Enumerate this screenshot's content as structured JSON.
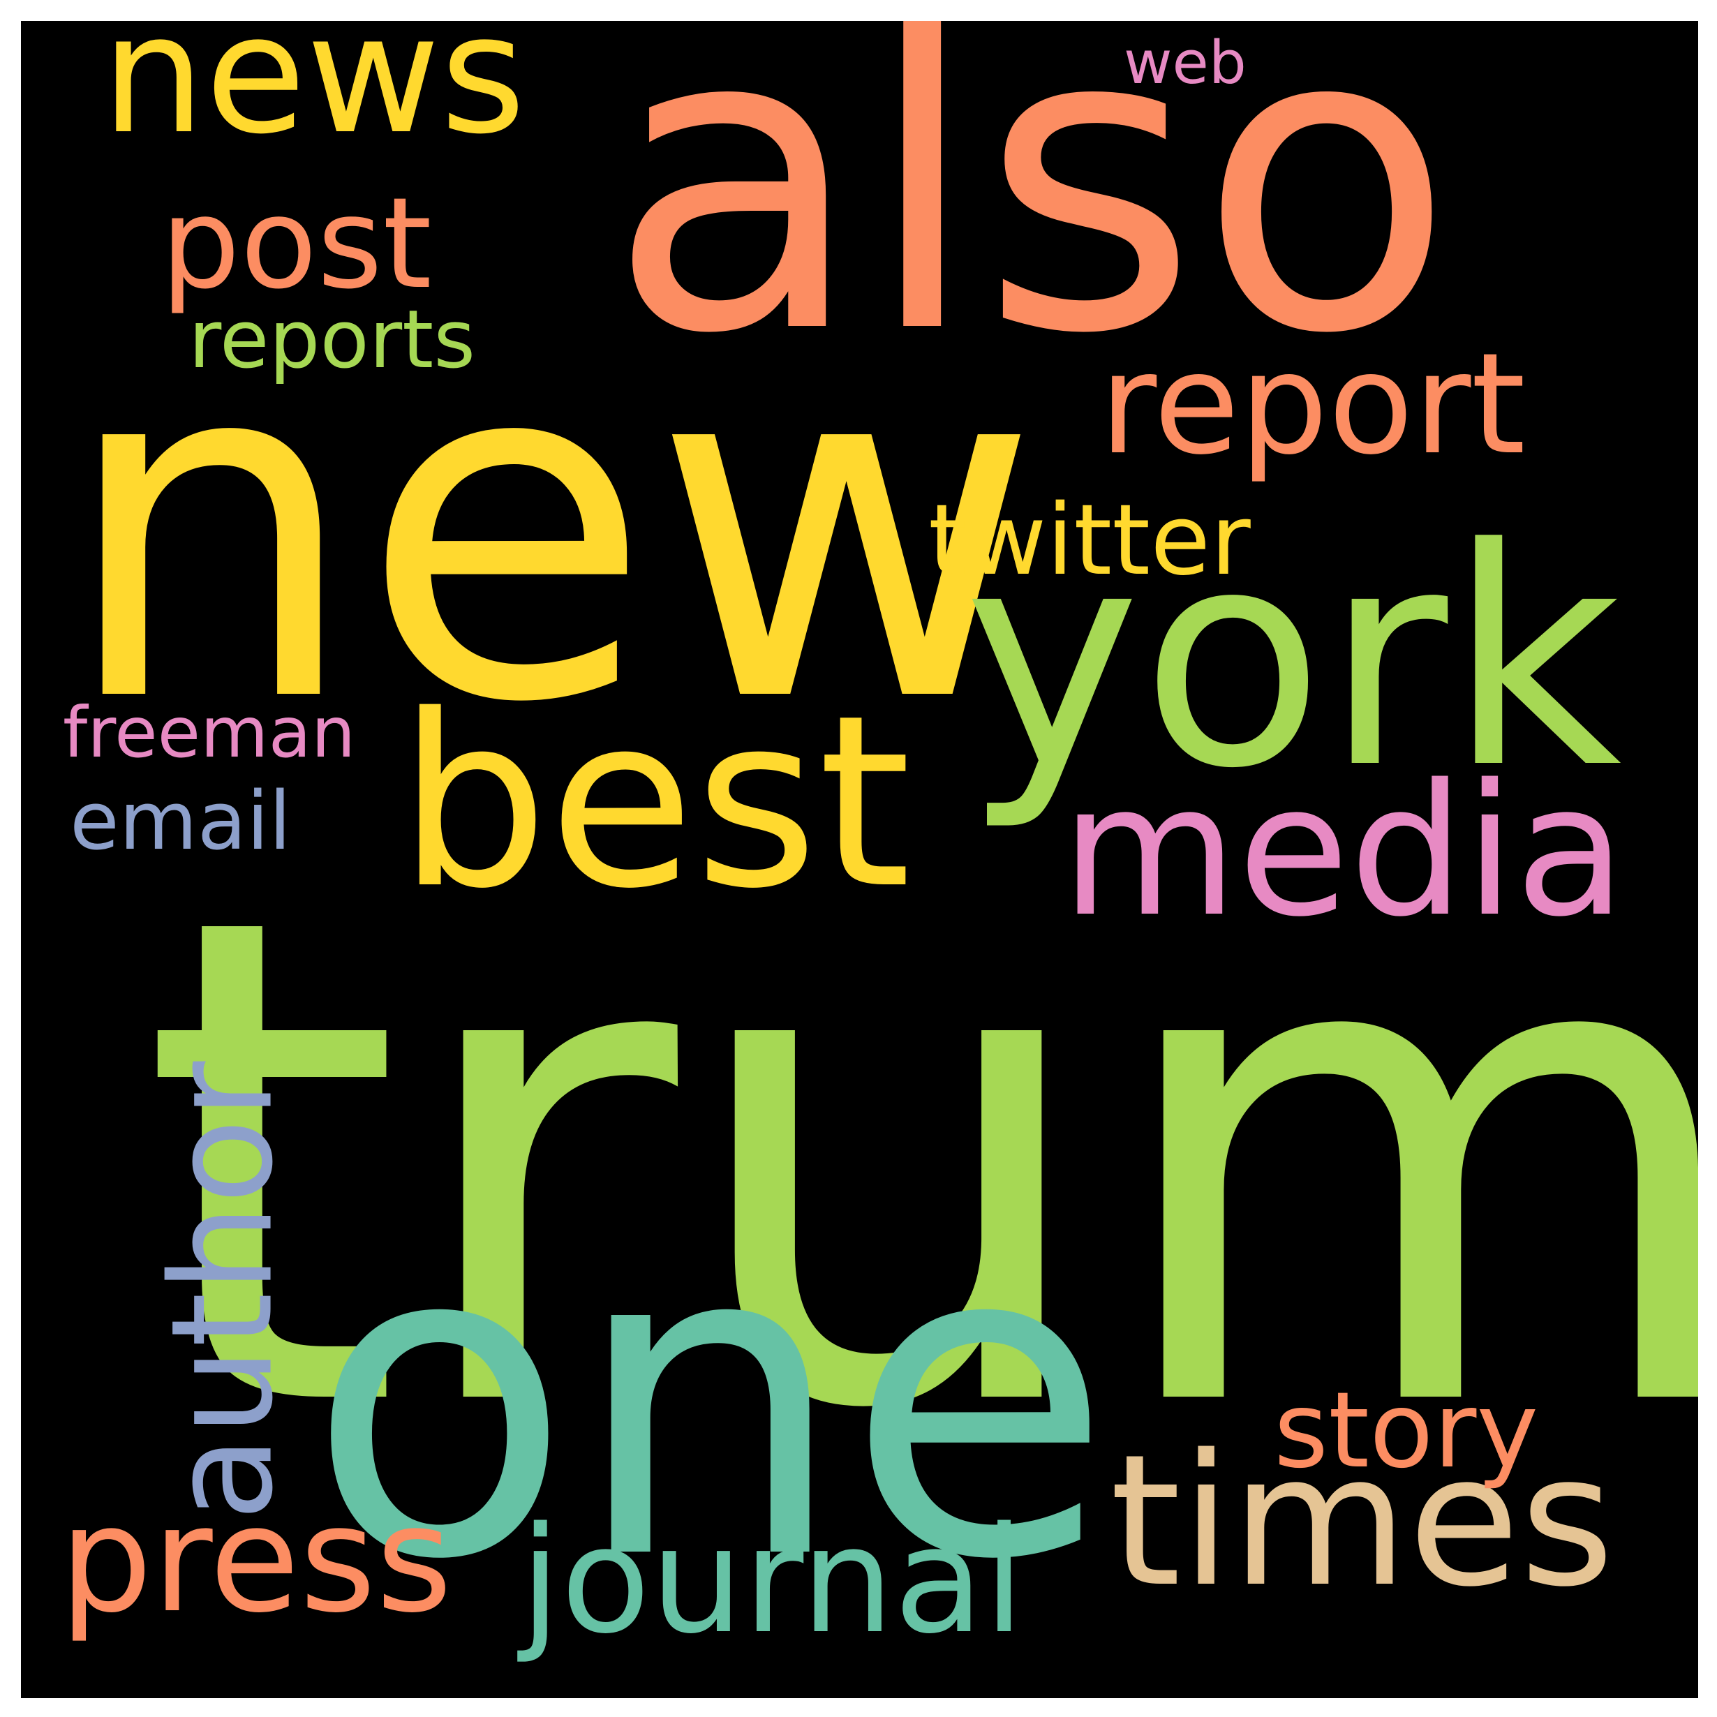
{
  "background": "#000000",
  "words": [
    {
      "id": "trump",
      "text": "trump",
      "color": "#a6d854"
    },
    {
      "id": "new",
      "text": "new",
      "color": "#ffd92f"
    },
    {
      "id": "also",
      "text": "also",
      "color": "#fc8d62"
    },
    {
      "id": "one",
      "text": "one",
      "color": "#66c2a5"
    },
    {
      "id": "york",
      "text": "york",
      "color": "#a6d854"
    },
    {
      "id": "best",
      "text": "best",
      "color": "#ffd92f"
    },
    {
      "id": "media",
      "text": "media",
      "color": "#e78ac3"
    },
    {
      "id": "times",
      "text": "times",
      "color": "#e5c494"
    },
    {
      "id": "news",
      "text": "news",
      "color": "#ffd92f"
    },
    {
      "id": "report",
      "text": "report",
      "color": "#fc8d62"
    },
    {
      "id": "press",
      "text": "press",
      "color": "#fc8d62"
    },
    {
      "id": "journal",
      "text": "journal",
      "color": "#66c2a5"
    },
    {
      "id": "post",
      "text": "post",
      "color": "#fc8d62"
    },
    {
      "id": "story",
      "text": "story",
      "color": "#8da0cb"
    },
    {
      "id": "author",
      "text": "author",
      "color": "#fc8d62"
    },
    {
      "id": "twitter",
      "text": "twitter",
      "color": "#ffd92f"
    },
    {
      "id": "reports",
      "text": "reports",
      "color": "#a6d854"
    },
    {
      "id": "email",
      "text": "email",
      "color": "#8da0cb"
    },
    {
      "id": "freeman",
      "text": "freeman",
      "color": "#e78ac3"
    },
    {
      "id": "web",
      "text": "web",
      "color": "#e78ac3"
    }
  ]
}
